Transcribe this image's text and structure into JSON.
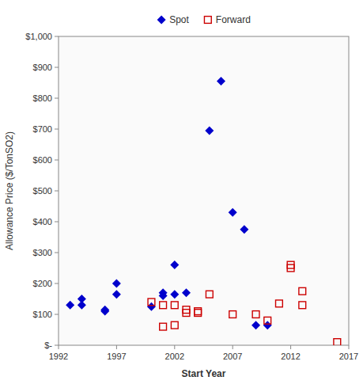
{
  "chart_data": {
    "type": "scatter",
    "xlabel": "Start Year",
    "ylabel": "Allowance Price ($/TonSO2)",
    "series": [
      {
        "name": "Spot",
        "color": "#0000cc",
        "marker": "diamond",
        "x": [
          1993,
          1994,
          1994,
          1996,
          1996,
          1997,
          1997,
          2000,
          2001,
          2001,
          2002,
          2002,
          2003,
          2005,
          2006,
          2007,
          2008,
          2009,
          2010
        ],
        "values": [
          130,
          150,
          130,
          110,
          115,
          200,
          165,
          125,
          170,
          160,
          165,
          260,
          170,
          695,
          855,
          430,
          375,
          65,
          65
        ]
      },
      {
        "name": "Forward",
        "color": "#cc0000",
        "marker": "open-square",
        "x": [
          2000,
          2001,
          2001,
          2002,
          2002,
          2003,
          2003,
          2004,
          2004,
          2005,
          2007,
          2009,
          2010,
          2011,
          2012,
          2012,
          2013,
          2013,
          2016
        ],
        "values": [
          140,
          130,
          60,
          130,
          65,
          115,
          105,
          110,
          105,
          165,
          100,
          100,
          80,
          135,
          260,
          250,
          175,
          130,
          10
        ]
      }
    ],
    "xlim": [
      1992,
      2017
    ],
    "ylim": [
      0,
      1000
    ],
    "xticks": [
      1992,
      1997,
      2002,
      2007,
      2012,
      2017
    ],
    "yticks": [
      {
        "value": 0,
        "label": "$-"
      },
      {
        "value": 100,
        "label": "$100"
      },
      {
        "value": 200,
        "label": "$200"
      },
      {
        "value": 300,
        "label": "$300"
      },
      {
        "value": 400,
        "label": "$400"
      },
      {
        "value": 500,
        "label": "$500"
      },
      {
        "value": 600,
        "label": "$600"
      },
      {
        "value": 700,
        "label": "$700"
      },
      {
        "value": 800,
        "label": "$800"
      },
      {
        "value": 900,
        "label": "$900"
      },
      {
        "value": 1000,
        "label": "$1,000"
      }
    ],
    "grid": false,
    "legend": "top"
  }
}
